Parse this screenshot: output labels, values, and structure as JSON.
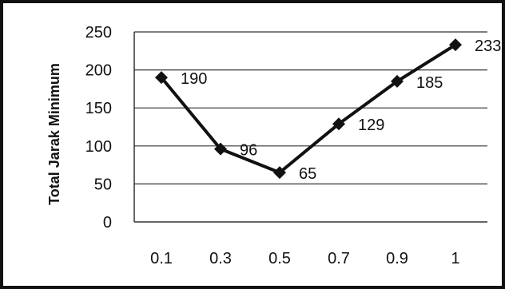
{
  "chart_data": {
    "type": "line",
    "title": "",
    "xlabel": "",
    "ylabel": "Total Jarak Minimum",
    "categories": [
      "0.1",
      "0.3",
      "0.5",
      "0.7",
      "0.9",
      "1"
    ],
    "series": [
      {
        "values": [
          190,
          96,
          65,
          129,
          185,
          233
        ],
        "data_labels": [
          "190",
          "96",
          "65",
          "129",
          "185",
          "233"
        ],
        "marker": "diamond",
        "color": "#111111"
      }
    ],
    "ylim": [
      0,
      250
    ],
    "yticks": [
      0,
      50,
      100,
      150,
      200,
      250
    ],
    "ytick_labels": [
      "0",
      "50",
      "100",
      "150",
      "200",
      "250"
    ],
    "grid": "horizontal",
    "legend": "none"
  }
}
